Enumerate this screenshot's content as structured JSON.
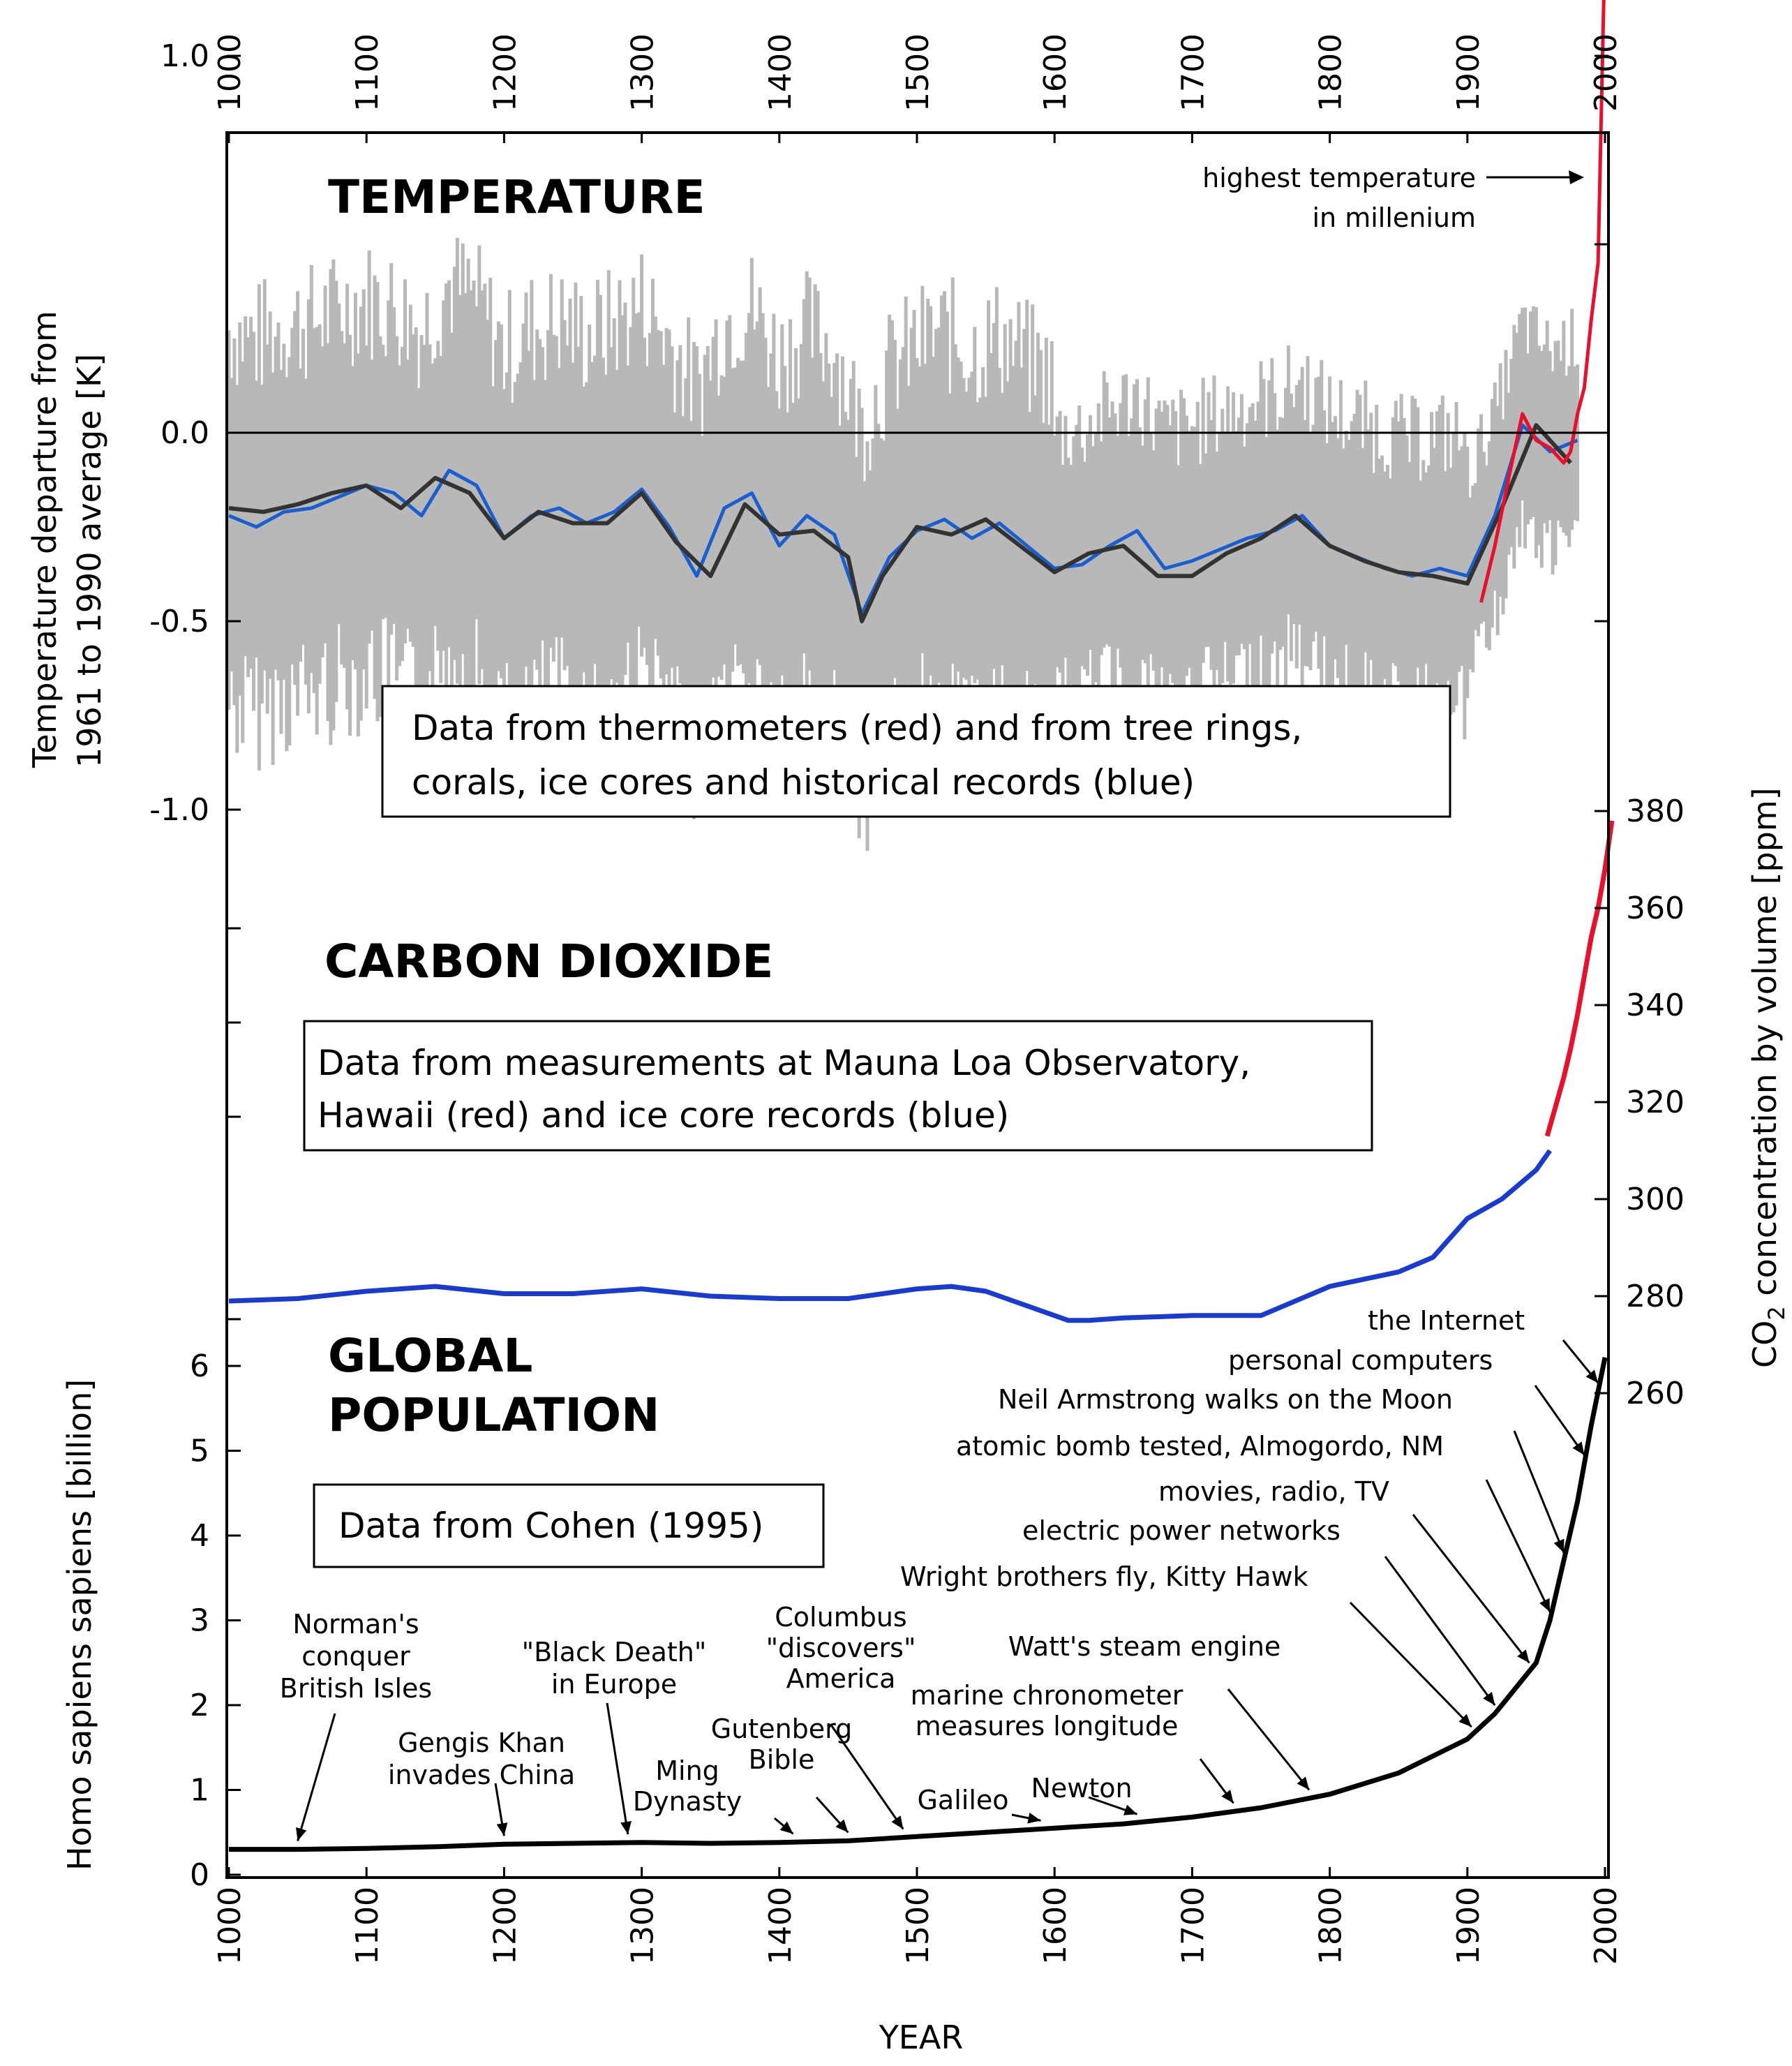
{
  "chart_data": {
    "type": "line",
    "x_axis": {
      "label": "YEAR",
      "ticks": [
        "1000",
        "1100",
        "1200",
        "1300",
        "1400",
        "1500",
        "1600",
        "1700",
        "1800",
        "1900",
        "2000"
      ],
      "xlim": [
        1000,
        2000
      ]
    },
    "panels": {
      "temperature": {
        "title": "TEMPERATURE",
        "ylabel": "Temperature departure from 1961 to 1990 average [K]",
        "ylabel_lines": [
          "Temperature departure from",
          "1961 to 1990 average [K]"
        ],
        "yticks": [
          "1.0",
          "0.0",
          "-0.5",
          "-1.0"
        ],
        "ylim": [
          -1.0,
          1.4
        ],
        "note_lines": [
          "Data from thermometers (red) and from tree rings,",
          "corals, ice cores and historical records (blue)"
        ],
        "annotation_lines": [
          "highest temperature",
          "in millenium"
        ],
        "colors": {
          "proxy": "#1a5fd0",
          "smooth": "#333333",
          "instrumental": "#e8102a",
          "uncertainty": "#b8b8b8"
        },
        "series": [
          {
            "role": "proxy",
            "x": [
              1000,
              1020,
              1040,
              1060,
              1080,
              1100,
              1120,
              1140,
              1160,
              1180,
              1200,
              1220,
              1240,
              1260,
              1280,
              1300,
              1320,
              1340,
              1360,
              1380,
              1400,
              1420,
              1440,
              1460,
              1480,
              1500,
              1520,
              1540,
              1560,
              1580,
              1600,
              1620,
              1640,
              1660,
              1680,
              1700,
              1720,
              1740,
              1760,
              1780,
              1800,
              1820,
              1840,
              1860,
              1880,
              1900,
              1920,
              1940,
              1960,
              1980
            ],
            "y": [
              -0.22,
              -0.25,
              -0.21,
              -0.2,
              -0.17,
              -0.14,
              -0.16,
              -0.22,
              -0.1,
              -0.14,
              -0.28,
              -0.22,
              -0.2,
              -0.24,
              -0.21,
              -0.15,
              -0.25,
              -0.38,
              -0.2,
              -0.16,
              -0.3,
              -0.22,
              -0.27,
              -0.48,
              -0.33,
              -0.26,
              -0.23,
              -0.28,
              -0.24,
              -0.3,
              -0.36,
              -0.35,
              -0.3,
              -0.26,
              -0.36,
              -0.34,
              -0.31,
              -0.28,
              -0.26,
              -0.22,
              -0.3,
              -0.33,
              -0.36,
              -0.38,
              -0.36,
              -0.38,
              -0.22,
              0.02,
              -0.05,
              -0.02
            ]
          },
          {
            "role": "smooth",
            "x": [
              1000,
              1025,
              1050,
              1075,
              1100,
              1125,
              1150,
              1175,
              1200,
              1225,
              1250,
              1275,
              1300,
              1325,
              1350,
              1375,
              1400,
              1425,
              1450,
              1460,
              1475,
              1500,
              1525,
              1550,
              1575,
              1600,
              1625,
              1650,
              1675,
              1700,
              1725,
              1750,
              1775,
              1800,
              1825,
              1850,
              1875,
              1900,
              1925,
              1950,
              1975
            ],
            "y": [
              -0.2,
              -0.21,
              -0.19,
              -0.16,
              -0.14,
              -0.2,
              -0.12,
              -0.16,
              -0.28,
              -0.21,
              -0.24,
              -0.24,
              -0.16,
              -0.29,
              -0.38,
              -0.19,
              -0.27,
              -0.26,
              -0.33,
              -0.5,
              -0.38,
              -0.25,
              -0.27,
              -0.23,
              -0.3,
              -0.37,
              -0.32,
              -0.3,
              -0.38,
              -0.38,
              -0.32,
              -0.28,
              -0.22,
              -0.3,
              -0.34,
              -0.37,
              -0.38,
              -0.4,
              -0.2,
              0.02,
              -0.08
            ]
          },
          {
            "role": "instrumental",
            "x": [
              1910,
              1920,
              1930,
              1940,
              1950,
              1960,
              1970,
              1975,
              1980,
              1985,
              1990,
              1995,
              2000
            ],
            "y": [
              -0.45,
              -0.3,
              -0.12,
              0.05,
              -0.02,
              -0.04,
              -0.08,
              -0.05,
              0.05,
              0.12,
              0.3,
              0.45,
              1.3
            ]
          }
        ]
      },
      "carbon_dioxide": {
        "title": "CARBON DIOXIDE",
        "ylabel": "CO2 concentration by volume [ppm]",
        "ylabel_pre": "CO",
        "ylabel_sub": "2",
        "ylabel_post": " concentration by volume [ppm]",
        "yticks": [
          "260",
          "280",
          "300",
          "320",
          "340",
          "360",
          "380"
        ],
        "ylim": [
          260,
          380
        ],
        "note_lines": [
          "Data from measurements at Mauna Loa Observatory,",
          "Hawaii (red) and ice core records (blue)"
        ],
        "colors": {
          "ice_core": "#1a3bd0",
          "mauna_loa": "#e8102a"
        },
        "series": [
          {
            "role": "ice_core",
            "x": [
              1000,
              1050,
              1100,
              1150,
              1200,
              1250,
              1300,
              1350,
              1400,
              1450,
              1500,
              1525,
              1550,
              1600,
              1610,
              1625,
              1650,
              1700,
              1750,
              1800,
              1825,
              1850,
              1875,
              1900,
              1925,
              1950,
              1960
            ],
            "y": [
              279,
              279.5,
              281,
              282,
              280.5,
              280.5,
              281.5,
              280,
              279.5,
              279.5,
              281.5,
              282,
              281,
              276,
              275,
              275,
              275.5,
              276,
              276,
              282,
              283.5,
              285,
              288,
              296,
              300,
              306,
              310
            ]
          },
          {
            "role": "mauna_loa",
            "x": [
              1958,
              1965,
              1970,
              1975,
              1980,
              1985,
              1990,
              1995,
              2000,
              2005
            ],
            "y": [
              313,
              320,
              325,
              331,
              338,
              346,
              354,
              360,
              368,
              378
            ]
          }
        ]
      },
      "global_population": {
        "title_lines": [
          "GLOBAL",
          "POPULATION"
        ],
        "ylabel": "Homo sapiens sapiens [billion]",
        "yticks": [
          "0",
          "1",
          "2",
          "3",
          "4",
          "5",
          "6"
        ],
        "ylim": [
          0,
          6.3
        ],
        "note": "Data from Cohen (1995)",
        "colors": {
          "line": "#000000"
        },
        "series": [
          {
            "role": "population",
            "x": [
              1000,
              1050,
              1100,
              1150,
              1200,
              1250,
              1300,
              1350,
              1400,
              1450,
              1500,
              1550,
              1600,
              1650,
              1700,
              1750,
              1800,
              1850,
              1900,
              1920,
              1950,
              1960,
              1970,
              1980,
              1990,
              2000
            ],
            "y": [
              0.3,
              0.3,
              0.31,
              0.33,
              0.36,
              0.37,
              0.38,
              0.37,
              0.38,
              0.4,
              0.45,
              0.5,
              0.55,
              0.6,
              0.68,
              0.79,
              0.95,
              1.2,
              1.6,
              1.9,
              2.5,
              3.0,
              3.7,
              4.4,
              5.3,
              6.1
            ]
          }
        ],
        "annotations": [
          {
            "lines": [
              "Norman's",
              "conquer",
              "British Isles"
            ],
            "year": 1050
          },
          {
            "lines": [
              "Gengis Khan",
              "invades China"
            ],
            "year": 1200
          },
          {
            "lines": [
              "\"Black Death\"",
              "in Europe"
            ],
            "year": 1290
          },
          {
            "lines": [
              "Columbus",
              "\"discovers\"",
              "America"
            ],
            "year": 1490
          },
          {
            "lines": [
              "Gutenberg",
              "Bible"
            ],
            "year": 1450
          },
          {
            "lines": [
              "Ming",
              "Dynasty"
            ],
            "year": 1410
          },
          {
            "lines": [
              "Galileo"
            ],
            "year": 1590
          },
          {
            "lines": [
              "Newton"
            ],
            "year": 1660
          },
          {
            "lines": [
              "marine chronometer",
              "measures longitude"
            ],
            "year": 1730
          },
          {
            "lines": [
              "Watt's steam engine"
            ],
            "year": 1785
          },
          {
            "lines": [
              "Wright brothers fly, Kitty Hawk"
            ],
            "year": 1903
          },
          {
            "lines": [
              "electric power networks"
            ],
            "year": 1920
          },
          {
            "lines": [
              "movies, radio, TV"
            ],
            "year": 1945
          },
          {
            "lines": [
              "atomic bomb tested, Almogordo, NM"
            ],
            "year": 1960
          },
          {
            "lines": [
              "Neil Armstrong walks on the Moon"
            ],
            "year": 1970
          },
          {
            "lines": [
              "personal computers"
            ],
            "year": 1985
          },
          {
            "lines": [
              "the Internet"
            ],
            "year": 1995
          }
        ]
      }
    }
  }
}
